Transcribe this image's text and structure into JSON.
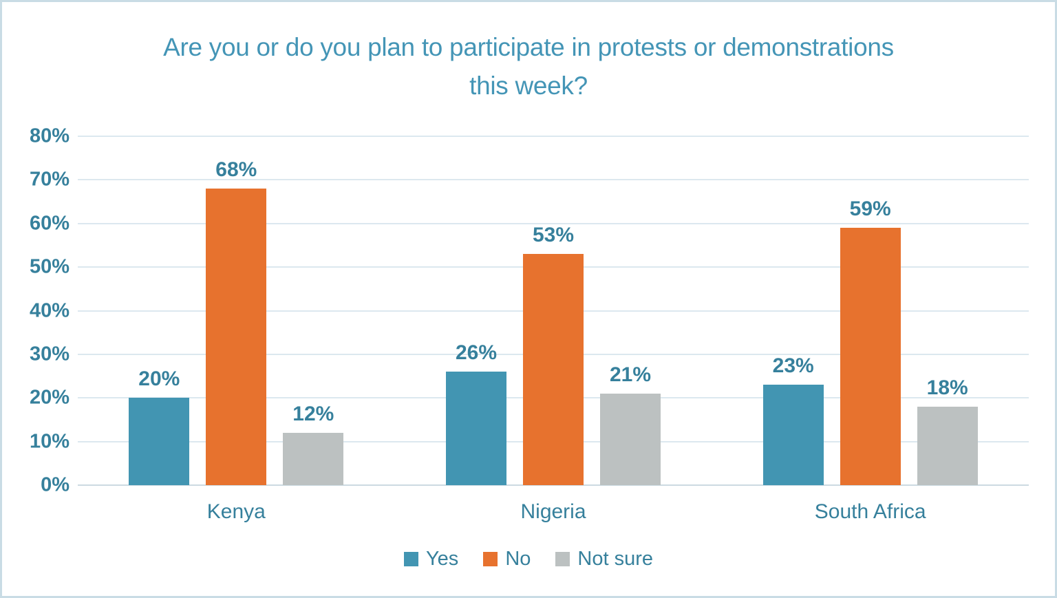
{
  "chart_data": {
    "type": "bar",
    "title": "Are you or do you plan to participate in protests or demonstrations this week?",
    "categories": [
      "Kenya",
      "Nigeria",
      "South Africa"
    ],
    "series": [
      {
        "name": "Yes",
        "color": "#4295b2",
        "values": [
          20,
          26,
          23
        ]
      },
      {
        "name": "No",
        "color": "#e7722e",
        "values": [
          68,
          53,
          59
        ]
      },
      {
        "name": "Not sure",
        "color": "#bcc1c1",
        "values": [
          12,
          21,
          18
        ]
      }
    ],
    "ylim": [
      0,
      80
    ],
    "ytick_step": 10,
    "ytick_suffix": "%",
    "data_label_suffix": "%",
    "grid": true,
    "legend_position": "bottom"
  },
  "colors": {
    "background": "#ffffff",
    "frame_border": "#c9dce5",
    "title_text": "#4495b6",
    "axis_text": "#36809c",
    "gridline": "#dce8ef",
    "baseline": "#ccdae2"
  }
}
